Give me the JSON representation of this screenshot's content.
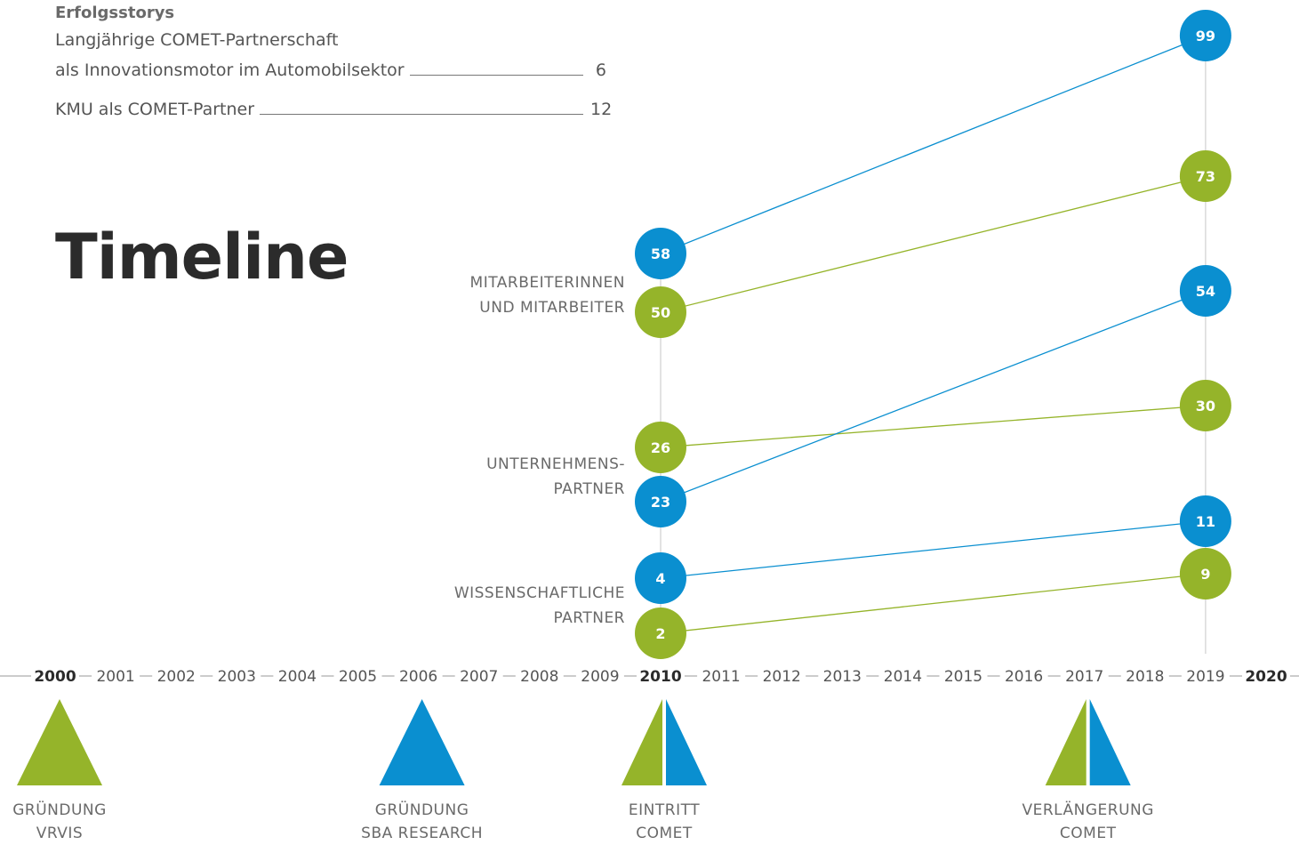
{
  "toc": {
    "heading": "Erfolgsstorys",
    "entry1_line1": "Langjährige COMET-Partnerschaft",
    "entry1_line2": "als Innovationsmotor im Automobilsektor",
    "entry1_page": "6",
    "entry2_line1": "KMU als COMET-Partner",
    "entry2_page": "12"
  },
  "title": "Timeline",
  "colors": {
    "blue": "#0a8fd0",
    "green": "#95b42a",
    "gray_line": "#cfcfcf",
    "axis_line": "#9a9a9a"
  },
  "row_labels": {
    "staff": [
      "MITARBEITERINNEN",
      "UND MITARBEITER"
    ],
    "companies": [
      "UNTERNEHMENS-",
      "PARTNER"
    ],
    "science": [
      "WISSENSCHAFTLICHE",
      "PARTNER"
    ]
  },
  "years": [
    "2000",
    "2001",
    "2002",
    "2003",
    "2004",
    "2005",
    "2006",
    "2007",
    "2008",
    "2009",
    "2010",
    "2011",
    "2012",
    "2013",
    "2014",
    "2015",
    "2016",
    "2017",
    "2018",
    "2019",
    "2020"
  ],
  "bold_years": [
    "2000",
    "2010",
    "2020"
  ],
  "series": [
    {
      "category": "staff",
      "color": "blue",
      "value_2010": 58,
      "value_2019": 99
    },
    {
      "category": "staff",
      "color": "green",
      "value_2010": 50,
      "value_2019": 73
    },
    {
      "category": "companies",
      "color": "green",
      "value_2010": 26,
      "value_2019": 30
    },
    {
      "category": "companies",
      "color": "blue",
      "value_2010": 23,
      "value_2019": 54
    },
    {
      "category": "science",
      "color": "blue",
      "value_2010": 4,
      "value_2019": 11
    },
    {
      "category": "science",
      "color": "green",
      "value_2010": 2,
      "value_2019": 9
    }
  ],
  "milestones": [
    {
      "year": "2000",
      "type": "green",
      "label": [
        "GRÜNDUNG",
        "VRVIS"
      ]
    },
    {
      "year": "2006",
      "type": "blue",
      "label": [
        "GRÜNDUNG",
        "SBA RESEARCH"
      ]
    },
    {
      "year": "2010",
      "type": "split",
      "label": [
        "EINTRITT",
        "COMET"
      ]
    },
    {
      "year": "2017",
      "type": "split",
      "label": [
        "VERLÄNGERUNG",
        "COMET"
      ]
    }
  ]
}
